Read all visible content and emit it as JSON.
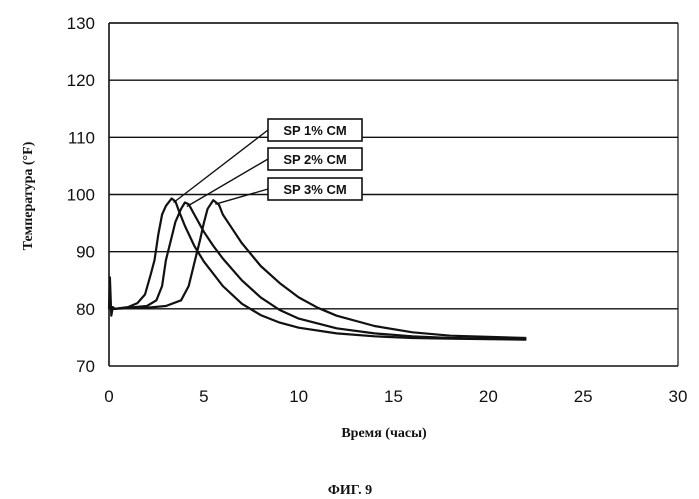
{
  "figure_caption": "ФИГ. 9",
  "chart_data": {
    "type": "line",
    "xlabel": "Время (часы)",
    "ylabel": "Температура (°F)",
    "xlim": [
      0,
      30
    ],
    "ylim": [
      70,
      130
    ],
    "x_ticks": [
      0,
      5,
      10,
      15,
      20,
      25,
      30
    ],
    "y_ticks": [
      70,
      80,
      90,
      100,
      110,
      120,
      130
    ],
    "grid": "horizontal",
    "legend": "callouts",
    "series": [
      {
        "name": "SP 1% CM",
        "x": [
          0,
          0.05,
          0.12,
          0.2,
          0.3,
          1.0,
          1.5,
          1.9,
          2.2,
          2.4,
          2.6,
          2.8,
          3.0,
          3.3,
          3.5,
          3.7,
          4.0,
          4.5,
          5.0,
          6.0,
          7.0,
          8.0,
          9.0,
          10.0,
          12.0,
          14.0,
          16.0,
          18.0,
          20.0,
          22.0
        ],
        "y": [
          80,
          85.5,
          78.8,
          80.3,
          80,
          80.3,
          81,
          82.5,
          86,
          88.5,
          93,
          96.5,
          98,
          99.3,
          98.8,
          97,
          94.5,
          91,
          88.3,
          84,
          80.9,
          78.9,
          77.6,
          76.7,
          75.7,
          75.2,
          74.9,
          74.8,
          74.7,
          74.6
        ]
      },
      {
        "name": "SP 2% CM",
        "x": [
          0,
          0.3,
          1.0,
          2.0,
          2.5,
          2.8,
          3.0,
          3.3,
          3.5,
          3.8,
          4.0,
          4.2,
          4.5,
          5.0,
          5.5,
          6.0,
          7.0,
          8.0,
          9.0,
          10.0,
          12.0,
          14.0,
          16.0,
          18.0,
          20.0,
          22.0
        ],
        "y": [
          80,
          80,
          80.2,
          80.5,
          81.5,
          84,
          88.5,
          92.5,
          95.2,
          97.5,
          98.6,
          98.3,
          96.5,
          93.5,
          91,
          88.8,
          85,
          82,
          79.8,
          78.3,
          76.6,
          75.7,
          75.2,
          74.9,
          74.8,
          74.7
        ]
      },
      {
        "name": "SP 3% CM",
        "x": [
          0,
          0.3,
          1.0,
          2.0,
          3.0,
          3.8,
          4.2,
          4.5,
          4.8,
          5.0,
          5.2,
          5.5,
          5.8,
          6.0,
          6.5,
          7.0,
          8.0,
          9.0,
          10.0,
          11.0,
          12.0,
          14.0,
          16.0,
          18.0,
          20.0,
          22.0
        ],
        "y": [
          80,
          80,
          80.1,
          80.2,
          80.5,
          81.5,
          84,
          88,
          92,
          95,
          97.5,
          99,
          98.2,
          96.5,
          94,
          91.5,
          87.5,
          84.5,
          82,
          80.2,
          78.8,
          77,
          75.9,
          75.3,
          75.1,
          74.9
        ]
      }
    ]
  }
}
